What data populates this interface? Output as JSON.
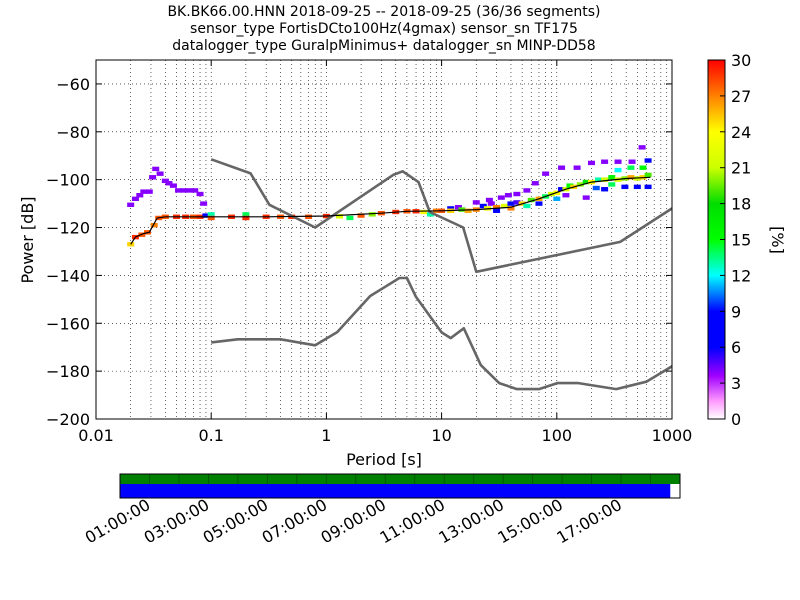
{
  "chart_data": [
    {
      "type": "heatmap",
      "title_lines": [
        "BK.BK66.00.HNN   2018-09-25 -- 2018-09-25  (36/36 segments)",
        "sensor_type FortisDCto100Hz(4gmax) sensor_sn TF175",
        "datalogger_type GuralpMinimus+ datalogger_sn MINP-DD58"
      ],
      "xlabel": "Period [s]",
      "ylabel": "Power [dB]",
      "x_scale": "log",
      "xlim": [
        0.01,
        1000
      ],
      "ylim": [
        -200,
        -50
      ],
      "x_tick_labels": [
        "0.01",
        "0.1",
        "1",
        "10",
        "100",
        "1000"
      ],
      "x_tick_values": [
        0.01,
        0.1,
        1,
        10,
        100,
        1000
      ],
      "y_tick_labels": [
        "−200",
        "−180",
        "−160",
        "−140",
        "−120",
        "−100",
        "−80",
        "−60"
      ],
      "y_tick_values": [
        -200,
        -180,
        -160,
        -140,
        -120,
        -100,
        -80,
        -60
      ],
      "grid": true,
      "colorbar": {
        "label": "[%]",
        "range": [
          0,
          30
        ],
        "tick_labels": [
          "0",
          "3",
          "6",
          "9",
          "12",
          "15",
          "18",
          "21",
          "24",
          "27",
          "30"
        ],
        "tick_values": [
          0,
          3,
          6,
          9,
          12,
          15,
          18,
          21,
          24,
          27,
          30
        ],
        "colormap": "pqlx"
      },
      "noise_models": [
        {
          "kind": "new_high_noise_model",
          "color": "#666666",
          "points": [
            [
              0.1,
              -91.5
            ],
            [
              0.22,
              -97.4
            ],
            [
              0.32,
              -110.5
            ],
            [
              0.8,
              -120
            ],
            [
              3.8,
              -98
            ],
            [
              4.6,
              -96.5
            ],
            [
              6.3,
              -101
            ],
            [
              7.9,
              -113.5
            ],
            [
              15.4,
              -120
            ],
            [
              20,
              -138.5
            ],
            [
              354.8,
              -126
            ],
            [
              1000,
              -112
            ]
          ]
        },
        {
          "kind": "new_low_noise_model",
          "color": "#666666",
          "points": [
            [
              0.1,
              -168
            ],
            [
              0.17,
              -166.7
            ],
            [
              0.4,
              -166.7
            ],
            [
              0.8,
              -169.2
            ],
            [
              1.24,
              -163.7
            ],
            [
              2.4,
              -148.6
            ],
            [
              4.3,
              -141.1
            ],
            [
              5,
              -141.1
            ],
            [
              6,
              -149
            ],
            [
              10,
              -163.8
            ],
            [
              12,
              -166.2
            ],
            [
              15.6,
              -162.1
            ],
            [
              21.9,
              -177.5
            ],
            [
              31.6,
              -185
            ],
            [
              45,
              -187.5
            ],
            [
              70,
              -187.5
            ],
            [
              101,
              -185
            ],
            [
              154,
              -185
            ],
            [
              328,
              -187.5
            ],
            [
              600,
              -184.4
            ],
            [
              1000,
              -178
            ]
          ]
        }
      ],
      "mode_trace": {
        "color": "#000000",
        "points": [
          [
            0.02,
            -127
          ],
          [
            0.022,
            -124
          ],
          [
            0.026,
            -122.5
          ],
          [
            0.029,
            -122
          ],
          [
            0.034,
            -116
          ],
          [
            0.04,
            -115.5
          ],
          [
            0.1,
            -115.5
          ],
          [
            0.3,
            -115.5
          ],
          [
            1,
            -115.2
          ],
          [
            3,
            -114
          ],
          [
            5,
            -113.2
          ],
          [
            10,
            -113
          ],
          [
            20,
            -112.5
          ],
          [
            40,
            -111.5
          ],
          [
            70,
            -108
          ],
          [
            120,
            -104
          ],
          [
            200,
            -101
          ],
          [
            400,
            -99.5
          ],
          [
            650,
            -99
          ]
        ]
      },
      "pdf_cells": [
        {
          "period": 0.02,
          "power": -127,
          "pct": 25
        },
        {
          "period": 0.022,
          "power": -124,
          "pct": 29
        },
        {
          "period": 0.025,
          "power": -123,
          "pct": 28
        },
        {
          "period": 0.028,
          "power": -122,
          "pct": 28
        },
        {
          "period": 0.032,
          "power": -119,
          "pct": 27
        },
        {
          "period": 0.035,
          "power": -116,
          "pct": 28
        },
        {
          "period": 0.04,
          "power": -115.5,
          "pct": 28
        },
        {
          "period": 0.05,
          "power": -115.5,
          "pct": 29
        },
        {
          "period": 0.06,
          "power": -115.5,
          "pct": 29
        },
        {
          "period": 0.07,
          "power": -115.5,
          "pct": 28
        },
        {
          "period": 0.08,
          "power": -115.5,
          "pct": 29
        },
        {
          "period": 0.09,
          "power": -115,
          "pct": 7
        },
        {
          "period": 0.1,
          "power": -114.5,
          "pct": 13
        },
        {
          "period": 0.1,
          "power": -116,
          "pct": 28
        },
        {
          "period": 0.15,
          "power": -115.5,
          "pct": 29
        },
        {
          "period": 0.2,
          "power": -114.5,
          "pct": 14
        },
        {
          "period": 0.2,
          "power": -116,
          "pct": 29
        },
        {
          "period": 0.3,
          "power": -115.5,
          "pct": 29
        },
        {
          "period": 0.4,
          "power": -115.5,
          "pct": 28
        },
        {
          "period": 0.5,
          "power": -115.5,
          "pct": 29
        },
        {
          "period": 0.7,
          "power": -115.5,
          "pct": 28
        },
        {
          "period": 1,
          "power": -115.2,
          "pct": 29
        },
        {
          "period": 1.3,
          "power": -115.3,
          "pct": 22
        },
        {
          "period": 1.6,
          "power": -116,
          "pct": 14
        },
        {
          "period": 2,
          "power": -115,
          "pct": 28
        },
        {
          "period": 2.5,
          "power": -114.5,
          "pct": 20
        },
        {
          "period": 3,
          "power": -114,
          "pct": 28
        },
        {
          "period": 4,
          "power": -113.5,
          "pct": 29
        },
        {
          "period": 5,
          "power": -113.2,
          "pct": 28
        },
        {
          "period": 6,
          "power": -113.2,
          "pct": 29
        },
        {
          "period": 7,
          "power": -113.5,
          "pct": 24
        },
        {
          "period": 8,
          "power": -114.5,
          "pct": 13
        },
        {
          "period": 9,
          "power": -113,
          "pct": 27
        },
        {
          "period": 10,
          "power": -113,
          "pct": 28
        },
        {
          "period": 12,
          "power": -112,
          "pct": 6
        },
        {
          "period": 12,
          "power": -113,
          "pct": 25
        },
        {
          "period": 14,
          "power": -111.5,
          "pct": 4
        },
        {
          "period": 15,
          "power": -112.5,
          "pct": 19
        },
        {
          "period": 17,
          "power": -113,
          "pct": 26
        },
        {
          "period": 20,
          "power": -112.5,
          "pct": 27
        },
        {
          "period": 23,
          "power": -111,
          "pct": 6
        },
        {
          "period": 25,
          "power": -112,
          "pct": 23
        },
        {
          "period": 27,
          "power": -110,
          "pct": 4
        },
        {
          "period": 30,
          "power": -111.5,
          "pct": 27
        },
        {
          "period": 30,
          "power": -113,
          "pct": 7
        },
        {
          "period": 35,
          "power": -111,
          "pct": 22
        },
        {
          "period": 40,
          "power": -110,
          "pct": 9
        },
        {
          "period": 40,
          "power": -112,
          "pct": 27
        },
        {
          "period": 45,
          "power": -109.5,
          "pct": 5
        },
        {
          "period": 50,
          "power": -110,
          "pct": 25
        },
        {
          "period": 55,
          "power": -111,
          "pct": 13
        },
        {
          "period": 60,
          "power": -108.5,
          "pct": 19
        },
        {
          "period": 70,
          "power": -108,
          "pct": 26
        },
        {
          "period": 70,
          "power": -110,
          "pct": 8
        },
        {
          "period": 80,
          "power": -107,
          "pct": 14
        },
        {
          "period": 90,
          "power": -106,
          "pct": 21
        },
        {
          "period": 100,
          "power": -105.5,
          "pct": 24
        },
        {
          "period": 100,
          "power": -108,
          "pct": 11
        },
        {
          "period": 110,
          "power": -104,
          "pct": 8
        },
        {
          "period": 120,
          "power": -104,
          "pct": 22
        },
        {
          "period": 130,
          "power": -102.5,
          "pct": 15
        },
        {
          "period": 140,
          "power": -103,
          "pct": 25
        },
        {
          "period": 160,
          "power": -102,
          "pct": 20
        },
        {
          "period": 180,
          "power": -101,
          "pct": 17
        },
        {
          "period": 200,
          "power": -101,
          "pct": 24
        },
        {
          "period": 220,
          "power": -103.5,
          "pct": 10
        },
        {
          "period": 230,
          "power": -100,
          "pct": 13
        },
        {
          "period": 260,
          "power": -100,
          "pct": 21
        },
        {
          "period": 260,
          "power": -104,
          "pct": 7
        },
        {
          "period": 300,
          "power": -99,
          "pct": 16
        },
        {
          "period": 300,
          "power": -102,
          "pct": 14
        },
        {
          "period": 340,
          "power": -100,
          "pct": 22
        },
        {
          "period": 340,
          "power": -96,
          "pct": 12
        },
        {
          "period": 390,
          "power": -99.5,
          "pct": 20
        },
        {
          "period": 390,
          "power": -103,
          "pct": 8
        },
        {
          "period": 440,
          "power": -99,
          "pct": 26
        },
        {
          "period": 440,
          "power": -95,
          "pct": 14
        },
        {
          "period": 500,
          "power": -99.5,
          "pct": 21
        },
        {
          "period": 500,
          "power": -103,
          "pct": 9
        },
        {
          "period": 560,
          "power": -99,
          "pct": 25
        },
        {
          "period": 560,
          "power": -95,
          "pct": 15
        },
        {
          "period": 620,
          "power": -98,
          "pct": 19
        },
        {
          "period": 620,
          "power": -103,
          "pct": 8
        },
        {
          "period": 0.02,
          "power": -110.5,
          "pct": 4
        },
        {
          "period": 0.022,
          "power": -108,
          "pct": 4
        },
        {
          "period": 0.024,
          "power": -106.5,
          "pct": 4
        },
        {
          "period": 0.026,
          "power": -105,
          "pct": 4
        },
        {
          "period": 0.029,
          "power": -105,
          "pct": 4
        },
        {
          "period": 0.031,
          "power": -99,
          "pct": 4
        },
        {
          "period": 0.033,
          "power": -95.5,
          "pct": 4
        },
        {
          "period": 0.036,
          "power": -97.5,
          "pct": 4
        },
        {
          "period": 0.04,
          "power": -100.5,
          "pct": 4
        },
        {
          "period": 0.043,
          "power": -101.5,
          "pct": 4
        },
        {
          "period": 0.047,
          "power": -102.5,
          "pct": 4
        },
        {
          "period": 0.052,
          "power": -104.5,
          "pct": 4
        },
        {
          "period": 0.058,
          "power": -104.5,
          "pct": 4
        },
        {
          "period": 0.065,
          "power": -104.5,
          "pct": 4
        },
        {
          "period": 0.072,
          "power": -104.5,
          "pct": 4
        },
        {
          "period": 0.08,
          "power": -106,
          "pct": 4
        },
        {
          "period": 0.086,
          "power": -110,
          "pct": 4
        },
        {
          "period": 20,
          "power": -109.5,
          "pct": 4
        },
        {
          "period": 26,
          "power": -108.5,
          "pct": 4
        },
        {
          "period": 33,
          "power": -107.5,
          "pct": 4
        },
        {
          "period": 38,
          "power": -106.5,
          "pct": 4
        },
        {
          "period": 45,
          "power": -106,
          "pct": 4
        },
        {
          "period": 55,
          "power": -104.5,
          "pct": 4
        },
        {
          "period": 65,
          "power": -101.5,
          "pct": 4
        },
        {
          "period": 80,
          "power": -97.5,
          "pct": 4
        },
        {
          "period": 110,
          "power": -95,
          "pct": 4
        },
        {
          "period": 150,
          "power": -95,
          "pct": 4
        },
        {
          "period": 200,
          "power": -93,
          "pct": 4
        },
        {
          "period": 260,
          "power": -92.5,
          "pct": 4
        },
        {
          "period": 340,
          "power": -92.5,
          "pct": 4
        },
        {
          "period": 450,
          "power": -92.5,
          "pct": 4
        },
        {
          "period": 550,
          "power": -86.5,
          "pct": 4
        },
        {
          "period": 620,
          "power": -92,
          "pct": 6
        },
        {
          "period": 180,
          "power": -107.5,
          "pct": 4
        },
        {
          "period": 120,
          "power": -106.5,
          "pct": 4
        }
      ]
    },
    {
      "type": "bar",
      "title": "",
      "time_tick_labels": [
        "01:00:00",
        "03:00:00",
        "05:00:00",
        "07:00:00",
        "09:00:00",
        "11:00:00",
        "13:00:00",
        "15:00:00",
        "17:00:00"
      ],
      "time_tick_hours": [
        1,
        3,
        5,
        7,
        9,
        11,
        13,
        15,
        17
      ],
      "xlim_hours": [
        0,
        19
      ],
      "segment_hours": [
        0,
        1,
        2,
        3,
        4,
        5,
        6,
        7,
        8,
        9,
        10,
        11,
        12,
        13,
        14,
        15,
        16,
        17,
        18
      ],
      "series": [
        {
          "color": "#008000",
          "start_hour": 0,
          "end_hour": 19
        },
        {
          "color": "#0000ff",
          "start_hour": 0,
          "end_hour": 18.67
        }
      ]
    }
  ]
}
